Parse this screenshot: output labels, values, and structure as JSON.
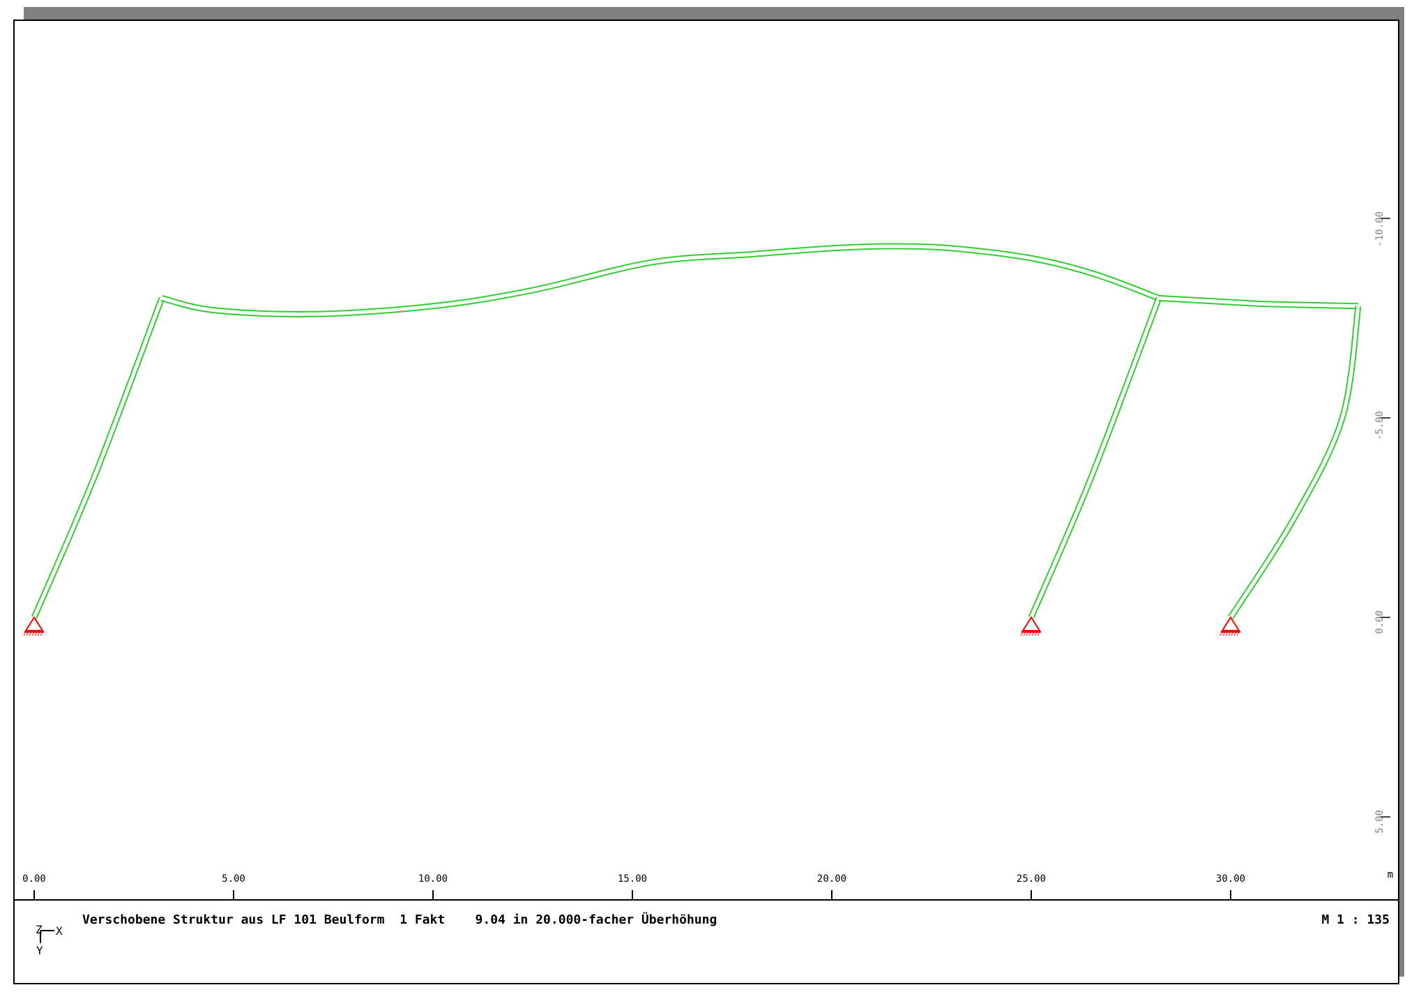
{
  "chart_data": {
    "type": "structural-frame",
    "x_ticks": [
      "0.00",
      "5.00",
      "10.00",
      "15.00",
      "20.00",
      "25.00",
      "30.00"
    ],
    "x_unit": "m",
    "y_ticks": [
      {
        "value": -10,
        "label": "-10.00"
      },
      {
        "value": -5,
        "label": "-5.00"
      },
      {
        "value": 0,
        "label": "0.00"
      },
      {
        "value": 5,
        "label": "5.00"
      }
    ],
    "supports_x": [
      0.0,
      25.0,
      30.0
    ],
    "members": [
      {
        "name": "left-column",
        "points": [
          [
            0.0,
            0.0
          ],
          [
            1.5,
            -3.5
          ],
          [
            3.2,
            -8.0
          ]
        ]
      },
      {
        "name": "left-rafter",
        "points": [
          [
            3.2,
            -8.0
          ],
          [
            4.5,
            -7.7
          ],
          [
            7.0,
            -7.6
          ],
          [
            10.0,
            -7.8
          ],
          [
            12.5,
            -8.2
          ],
          [
            15.5,
            -8.9
          ],
          [
            18.0,
            -9.1
          ],
          [
            20.0,
            -9.25
          ],
          [
            21.5,
            -9.3
          ],
          [
            23.0,
            -9.25
          ],
          [
            25.0,
            -9.0
          ],
          [
            26.6,
            -8.6
          ],
          [
            28.2,
            -8.0
          ]
        ]
      },
      {
        "name": "middle-column",
        "points": [
          [
            25.0,
            0.0
          ],
          [
            26.5,
            -3.5
          ],
          [
            28.2,
            -8.0
          ]
        ]
      },
      {
        "name": "right-rafter",
        "points": [
          [
            28.2,
            -8.0
          ],
          [
            30.0,
            -7.9
          ],
          [
            31.0,
            -7.85
          ],
          [
            33.2,
            -7.8
          ]
        ]
      },
      {
        "name": "right-column",
        "points": [
          [
            30.0,
            0.0
          ],
          [
            31.6,
            -2.5
          ],
          [
            32.8,
            -5.0
          ],
          [
            33.2,
            -7.8
          ]
        ]
      }
    ]
  },
  "footer": {
    "caption": "Verschobene Struktur aus LF 101 Beulform  1 Fakt    9.04 in 20.000-facher Überhöhung",
    "scale": "M 1 : 135",
    "axis_x": "X",
    "axis_y": "Y",
    "axis_z": "Z"
  },
  "colors": {
    "structure": "#33cc33",
    "support": "#ff0000",
    "frame": "#000000",
    "shadow": "#808080"
  }
}
